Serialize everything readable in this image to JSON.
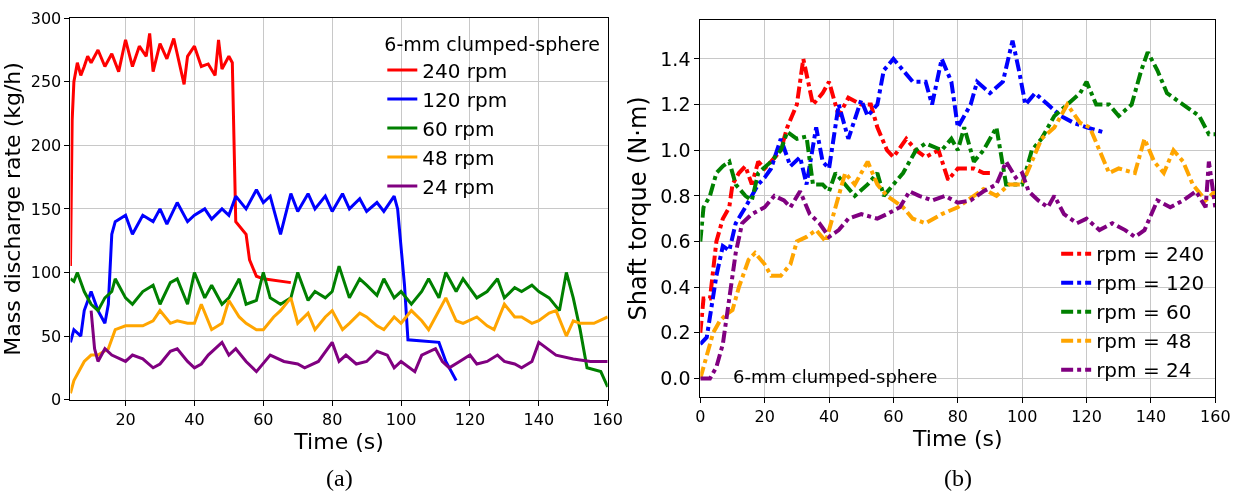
{
  "chart_data": [
    {
      "type": "line",
      "xlabel": "Time (s)",
      "ylabel": "Mass discharge rate (kg/h)",
      "legend_title": "6-mm clumped-sphere",
      "legend": "top right",
      "grid": true,
      "line_style": "solid",
      "xlim": [
        4,
        160
      ],
      "xticks": [
        20,
        40,
        60,
        80,
        100,
        120,
        140,
        160
      ],
      "ylim": [
        0,
        300
      ],
      "yticks": [
        0,
        50,
        100,
        150,
        200,
        250,
        300
      ],
      "annotations": [
        "(a)"
      ],
      "series": [
        {
          "name": "240 rpm",
          "color": "#ff0000",
          "x": [
            4,
            4.5,
            5,
            6,
            7,
            8,
            9,
            10,
            12,
            14,
            16,
            18,
            20,
            22,
            24,
            26,
            27,
            28,
            30,
            32,
            34,
            36,
            37,
            38,
            40,
            42,
            44,
            46,
            47,
            48,
            50,
            51,
            52,
            55,
            56,
            58,
            60,
            68
          ],
          "values": [
            105,
            220,
            250,
            265,
            255,
            262,
            270,
            265,
            275,
            262,
            272,
            258,
            283,
            262,
            278,
            270,
            288,
            258,
            280,
            268,
            284,
            260,
            248,
            270,
            278,
            262,
            264,
            255,
            283,
            260,
            270,
            265,
            140,
            130,
            110,
            97,
            95,
            92
          ]
        },
        {
          "name": "120 rpm",
          "color": "#0000ff",
          "x": [
            4,
            5,
            7,
            8,
            10,
            12,
            14,
            15,
            16,
            17,
            20,
            22,
            25,
            28,
            30,
            32,
            35,
            38,
            40,
            43,
            45,
            48,
            50,
            52,
            55,
            58,
            60,
            62,
            65,
            68,
            70,
            73,
            75,
            78,
            80,
            83,
            85,
            88,
            90,
            93,
            95,
            98,
            99,
            101,
            102,
            111,
            113,
            116
          ],
          "values": [
            45,
            55,
            50,
            70,
            85,
            70,
            60,
            75,
            130,
            140,
            145,
            130,
            145,
            140,
            150,
            138,
            155,
            140,
            145,
            150,
            142,
            150,
            145,
            160,
            150,
            165,
            155,
            160,
            130,
            162,
            148,
            162,
            150,
            160,
            148,
            162,
            150,
            158,
            148,
            155,
            148,
            160,
            150,
            90,
            47,
            45,
            30,
            15
          ]
        },
        {
          "name": "60 rpm",
          "color": "#008000",
          "x": [
            4,
            5,
            6,
            8,
            10,
            12,
            14,
            16,
            17,
            20,
            22,
            25,
            28,
            30,
            33,
            35,
            38,
            40,
            43,
            45,
            48,
            50,
            53,
            55,
            58,
            60,
            62,
            65,
            68,
            70,
            73,
            75,
            78,
            80,
            82,
            85,
            88,
            90,
            93,
            95,
            98,
            100,
            103,
            106,
            108,
            111,
            113,
            116,
            118,
            122,
            125,
            128,
            130,
            133,
            135,
            138,
            140,
            143,
            146,
            148,
            150,
            152,
            154,
            158,
            160
          ],
          "values": [
            95,
            93,
            100,
            85,
            75,
            70,
            80,
            85,
            95,
            80,
            75,
            85,
            90,
            75,
            92,
            95,
            75,
            100,
            80,
            90,
            75,
            80,
            95,
            75,
            78,
            100,
            80,
            75,
            80,
            100,
            78,
            85,
            80,
            85,
            105,
            80,
            95,
            90,
            82,
            95,
            80,
            85,
            75,
            85,
            95,
            80,
            100,
            85,
            95,
            80,
            85,
            95,
            80,
            88,
            85,
            90,
            85,
            80,
            70,
            100,
            80,
            55,
            25,
            22,
            10
          ]
        },
        {
          "name": "48 rpm",
          "color": "#ffa500",
          "x": [
            4,
            5,
            8,
            10,
            12,
            15,
            17,
            20,
            25,
            28,
            30,
            33,
            35,
            38,
            40,
            42,
            45,
            48,
            50,
            53,
            55,
            58,
            60,
            63,
            65,
            68,
            70,
            73,
            75,
            78,
            80,
            83,
            85,
            88,
            90,
            93,
            95,
            98,
            100,
            103,
            106,
            108,
            110,
            113,
            116,
            118,
            122,
            125,
            127,
            130,
            133,
            135,
            138,
            140,
            143,
            145,
            148,
            150,
            152,
            156,
            160
          ],
          "values": [
            5,
            15,
            30,
            35,
            35,
            40,
            55,
            58,
            58,
            62,
            70,
            60,
            62,
            60,
            60,
            75,
            55,
            60,
            78,
            65,
            60,
            55,
            55,
            65,
            70,
            80,
            60,
            68,
            55,
            65,
            70,
            55,
            60,
            68,
            65,
            58,
            55,
            65,
            60,
            70,
            62,
            55,
            65,
            80,
            62,
            60,
            65,
            58,
            55,
            75,
            65,
            65,
            60,
            62,
            68,
            70,
            50,
            62,
            60,
            60,
            65
          ]
        },
        {
          "name": "24 rpm",
          "color": "#800080",
          "x": [
            10,
            11,
            12,
            14,
            16,
            20,
            22,
            25,
            28,
            30,
            33,
            35,
            38,
            40,
            42,
            44,
            48,
            50,
            52,
            55,
            58,
            62,
            66,
            70,
            72,
            76,
            80,
            82,
            84,
            87,
            90,
            93,
            96,
            98,
            100,
            104,
            106,
            110,
            112,
            114,
            117,
            120,
            122,
            125,
            128,
            130,
            133,
            135,
            138,
            140,
            145,
            150,
            155,
            160
          ],
          "values": [
            70,
            40,
            30,
            40,
            35,
            30,
            35,
            32,
            25,
            28,
            38,
            40,
            30,
            25,
            28,
            35,
            45,
            35,
            40,
            30,
            22,
            35,
            30,
            28,
            25,
            30,
            45,
            30,
            35,
            28,
            30,
            38,
            35,
            25,
            30,
            22,
            35,
            40,
            30,
            25,
            30,
            35,
            28,
            30,
            35,
            30,
            28,
            25,
            30,
            45,
            35,
            32,
            30,
            30
          ]
        }
      ]
    },
    {
      "type": "line",
      "xlabel": "Time (s)",
      "ylabel": "Shaft torque (N·m)",
      "legend": "bottom right",
      "grid": true,
      "line_style": "dashed",
      "xlim": [
        0,
        160
      ],
      "xticks": [
        0,
        20,
        40,
        60,
        80,
        100,
        120,
        140,
        160
      ],
      "ylim": [
        -0.08,
        1.57
      ],
      "yticks": [
        {
          "value": 0,
          "label": "0.0"
        },
        0.2,
        0.4,
        0.6,
        0.8,
        {
          "value": 1,
          "label": "1.0"
        },
        1.2,
        1.4
      ],
      "annotations": [
        "(b)",
        "6-mm clumped-sphere"
      ],
      "series": [
        {
          "name": "rpm = 240",
          "color": "#ff0000",
          "x": [
            0,
            1,
            3,
            5,
            7,
            9,
            10,
            12,
            14,
            16,
            18,
            20,
            22,
            25,
            27,
            30,
            32,
            35,
            38,
            40,
            43,
            46,
            50,
            53,
            55,
            58,
            60,
            64,
            67,
            70,
            74,
            77,
            80,
            85,
            88,
            90
          ],
          "values": [
            0.2,
            0.35,
            0.35,
            0.6,
            0.7,
            0.75,
            0.85,
            0.9,
            0.93,
            0.85,
            0.95,
            0.92,
            0.95,
            1.0,
            1.1,
            1.2,
            1.4,
            1.2,
            1.25,
            1.3,
            1.15,
            1.23,
            1.2,
            1.2,
            1.1,
            1.0,
            0.97,
            1.05,
            1.0,
            0.97,
            1.0,
            0.87,
            0.92,
            0.92,
            0.9,
            0.9
          ]
        },
        {
          "name": "rpm = 120",
          "color": "#0000ff",
          "x": [
            0,
            2,
            5,
            7,
            9,
            11,
            14,
            18,
            20,
            22,
            25,
            28,
            31,
            33,
            36,
            38,
            40,
            43,
            46,
            50,
            52,
            55,
            57,
            60,
            63,
            66,
            70,
            72,
            75,
            78,
            80,
            84,
            86,
            90,
            94,
            97,
            99,
            101,
            104,
            108,
            112,
            116,
            120,
            125
          ],
          "values": [
            0.15,
            0.18,
            0.45,
            0.58,
            0.56,
            0.68,
            0.75,
            0.85,
            0.88,
            0.92,
            1.05,
            0.93,
            0.97,
            0.85,
            1.1,
            0.95,
            0.92,
            1.2,
            1.05,
            1.22,
            1.15,
            1.2,
            1.35,
            1.4,
            1.35,
            1.3,
            1.3,
            1.2,
            1.4,
            1.3,
            1.1,
            1.2,
            1.3,
            1.25,
            1.3,
            1.48,
            1.35,
            1.2,
            1.25,
            1.2,
            1.15,
            1.12,
            1.1,
            1.08
          ]
        },
        {
          "name": "rpm = 60",
          "color": "#008000",
          "x": [
            0,
            1,
            3,
            5,
            7,
            9,
            11,
            14,
            16,
            18,
            22,
            25,
            27,
            30,
            33,
            35,
            38,
            40,
            42,
            45,
            48,
            52,
            55,
            57,
            60,
            63,
            67,
            70,
            75,
            78,
            80,
            82,
            85,
            88,
            92,
            95,
            100,
            103,
            106,
            110,
            114,
            118,
            120,
            123,
            127,
            130,
            134,
            137,
            139,
            142,
            145,
            150,
            155,
            158,
            160
          ],
          "values": [
            0.6,
            0.75,
            0.8,
            0.9,
            0.93,
            0.95,
            0.85,
            0.8,
            0.78,
            0.9,
            0.95,
            1.0,
            1.08,
            1.05,
            1.06,
            0.85,
            0.85,
            0.82,
            0.9,
            0.85,
            0.8,
            0.85,
            0.9,
            0.8,
            0.85,
            0.9,
            1.0,
            1.03,
            1.0,
            1.05,
            1.0,
            1.1,
            0.95,
            1.0,
            1.1,
            0.85,
            0.85,
            1.0,
            1.05,
            1.15,
            1.2,
            1.25,
            1.3,
            1.2,
            1.2,
            1.15,
            1.2,
            1.35,
            1.43,
            1.35,
            1.25,
            1.2,
            1.15,
            1.07,
            1.07
          ]
        },
        {
          "name": "rpm = 48",
          "color": "#ffa500",
          "x": [
            0,
            2,
            4,
            6,
            8,
            10,
            12,
            15,
            17,
            20,
            22,
            25,
            28,
            30,
            33,
            36,
            39,
            42,
            45,
            48,
            52,
            55,
            58,
            60,
            63,
            66,
            70,
            75,
            80,
            85,
            88,
            92,
            96,
            100,
            103,
            106,
            110,
            114,
            118,
            121,
            124,
            127,
            130,
            135,
            138,
            141,
            144,
            147,
            150,
            153,
            157,
            160
          ],
          "values": [
            0.0,
            0.1,
            0.2,
            0.25,
            0.28,
            0.3,
            0.4,
            0.52,
            0.55,
            0.5,
            0.45,
            0.45,
            0.5,
            0.6,
            0.62,
            0.65,
            0.6,
            0.75,
            0.9,
            0.85,
            0.95,
            0.85,
            0.8,
            0.78,
            0.75,
            0.7,
            0.68,
            0.72,
            0.75,
            0.8,
            0.83,
            0.8,
            0.85,
            0.85,
            0.95,
            1.05,
            1.1,
            1.2,
            1.12,
            1.1,
            1.0,
            0.9,
            0.92,
            0.9,
            1.05,
            0.95,
            0.9,
            1.0,
            0.95,
            0.85,
            0.78,
            0.82
          ]
        },
        {
          "name": "rpm = 24",
          "color": "#800080",
          "x": [
            0,
            3,
            5,
            7,
            9,
            11,
            13,
            16,
            20,
            23,
            26,
            28,
            31,
            34,
            37,
            40,
            43,
            46,
            50,
            55,
            58,
            62,
            65,
            68,
            72,
            76,
            80,
            84,
            88,
            92,
            95,
            98,
            100,
            102,
            105,
            108,
            110,
            113,
            117,
            120,
            124,
            128,
            132,
            135,
            138,
            142,
            146,
            150,
            154,
            157,
            158,
            160
          ],
          "values": [
            0.0,
            0.0,
            0.05,
            0.15,
            0.35,
            0.55,
            0.68,
            0.72,
            0.75,
            0.8,
            0.78,
            0.75,
            0.82,
            0.72,
            0.68,
            0.62,
            0.65,
            0.7,
            0.72,
            0.7,
            0.72,
            0.75,
            0.82,
            0.8,
            0.78,
            0.8,
            0.77,
            0.78,
            0.82,
            0.85,
            0.95,
            0.88,
            0.9,
            0.82,
            0.78,
            0.75,
            0.8,
            0.72,
            0.68,
            0.7,
            0.65,
            0.68,
            0.65,
            0.62,
            0.65,
            0.78,
            0.75,
            0.78,
            0.82,
            0.75,
            0.95,
            0.75
          ]
        }
      ]
    }
  ]
}
